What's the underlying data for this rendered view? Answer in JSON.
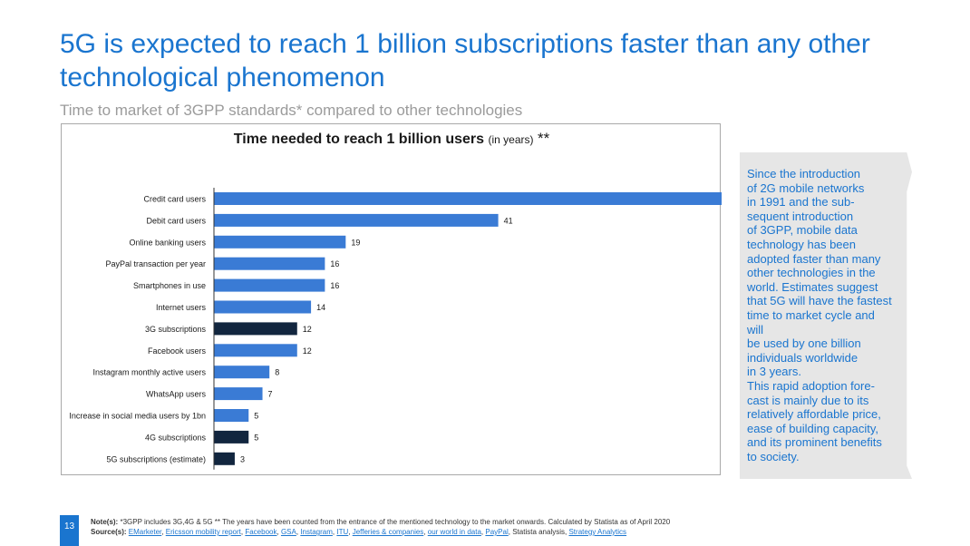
{
  "title": "5G is expected to reach 1 billion subscriptions faster than any other technological phenomenon",
  "subtitle": "Time to market of 3GPP standards* compared to other technologies",
  "chart_heading": {
    "main": "Time needed to reach 1 billion users",
    "unit": "(in years)",
    "marker": "**"
  },
  "side_text": "  Since the introduction\nof 2G mobile networks\nin 1991 and the sub-\nsequent introduction\nof 3GPP, mobile data\ntechnology has been\nadopted faster than many\nother technologies in the\nworld. Estimates suggest\nthat 5G will have the fastest\ntime to market cycle and\nwill\nbe used by one billion\nindividuals worldwide\nin 3 years.\nThis rapid adoption fore-\ncast is mainly due to its\nrelatively affordable price,\nease of building capacity,\nand its prominent benefits\nto society.",
  "page_number": "13",
  "notes": {
    "label": "Note(s):",
    "text": "*3GPP includes 3G,4G & 5G ** The years have been counted from the entrance of the mentioned technology to the market onwards. Calculated by Statista as of April 2020"
  },
  "sources": {
    "label": "Source(s):",
    "links": [
      "EMarketer",
      "Ericsson mobility report",
      "Facebook",
      "GSA",
      "Instagram",
      "ITU",
      "Jefferies & companies",
      "our world in data",
      "PayPal"
    ],
    "plain": "Statista analysis,",
    "last_link": "Strategy Analytics"
  },
  "colors": {
    "accent": "#1a75cf",
    "bar": "#3a7bd5",
    "highlight": "#12263f"
  },
  "chart_data": {
    "type": "bar",
    "orientation": "horizontal",
    "categories": [
      "Credit card users",
      "Debit card users",
      "Online banking users",
      "PayPal transaction per year",
      "Smartphones in use",
      "Internet users",
      "3G subscriptions",
      "Facebook users",
      "Instagram monthly active users",
      "WhatsApp users",
      "Increase in social media users by 1bn",
      "4G subscriptions",
      "5G subscriptions (estimate)"
    ],
    "values": [
      74,
      41,
      19,
      16,
      16,
      14,
      12,
      12,
      8,
      7,
      5,
      5,
      3
    ],
    "highlighted": [
      false,
      false,
      false,
      false,
      false,
      false,
      true,
      false,
      false,
      false,
      false,
      true,
      true
    ],
    "xlim": [
      0,
      80
    ],
    "grid": false,
    "data_labels": true
  }
}
